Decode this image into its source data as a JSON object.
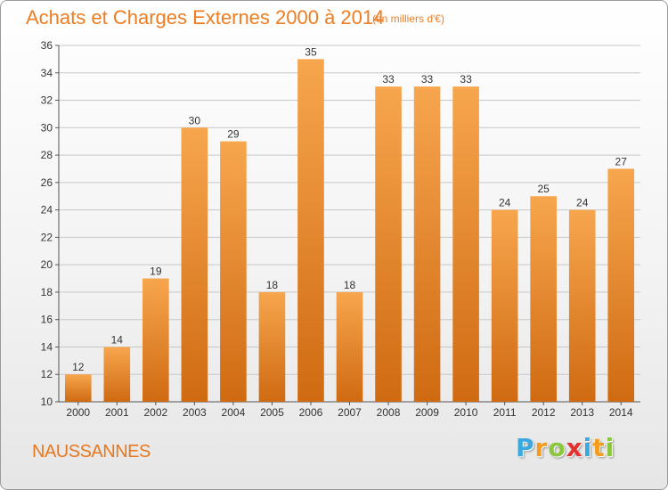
{
  "header": {
    "title": "Achats et Charges Externes 2000 à 2014",
    "subtitle": "(en milliers d'€)"
  },
  "footer": {
    "place": "NAUSSANNES",
    "brand": {
      "letters": [
        "P",
        "r",
        "o",
        "x",
        "i",
        "t",
        "i"
      ],
      "colors": [
        "#3aa9e0",
        "#f39c1f",
        "#8cc63f",
        "#e5312e",
        "#3aa9e0",
        "#f39c1f",
        "#8cc63f"
      ]
    }
  },
  "colors": {
    "bar_light": "#f7a64e",
    "bar_dark": "#cf6a12",
    "grid": "#c8c8c8",
    "axis": "#555555"
  },
  "chart_data": {
    "type": "bar",
    "title": "Achats et Charges Externes 2000 à 2014",
    "subtitle": "(en milliers d'€)",
    "categories": [
      "2000",
      "2001",
      "2002",
      "2003",
      "2004",
      "2005",
      "2006",
      "2007",
      "2008",
      "2009",
      "2010",
      "2011",
      "2012",
      "2013",
      "2014"
    ],
    "values": [
      12,
      14,
      19,
      30,
      29,
      18,
      35,
      18,
      33,
      33,
      33,
      24,
      25,
      24,
      27
    ],
    "ylim": [
      10,
      36
    ],
    "yticks": [
      10,
      12,
      14,
      16,
      18,
      20,
      22,
      24,
      26,
      28,
      30,
      32,
      34,
      36
    ],
    "grid": true,
    "data_labels": true
  }
}
